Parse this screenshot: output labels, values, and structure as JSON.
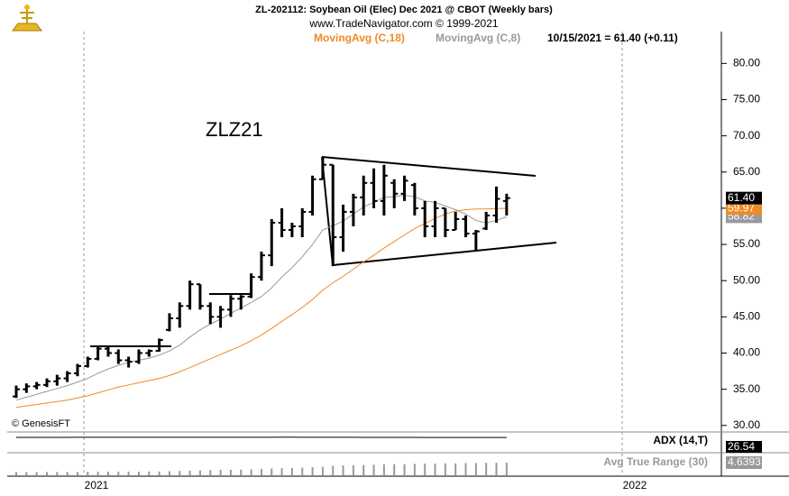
{
  "chart_data": {
    "type": "ohlc",
    "title": "ZL-202112:  Soybean Oil (Elec) Dec 2021 @ CBOT  (Weekly bars)",
    "subtitle": "www.TradeNavigator.com © 1999-2021",
    "info": "10/15/2021 = 61.40 (+0.11)",
    "annotation": "ZLZ21",
    "credit": "© GenesisFT",
    "color": "#000000",
    "ylim": [
      29.1,
      84.4
    ],
    "yticks": [
      {
        "value": 30,
        "label": "30.00"
      },
      {
        "value": 35,
        "label": "35.00"
      },
      {
        "value": 40,
        "label": "40.00"
      },
      {
        "value": 45,
        "label": "45.00"
      },
      {
        "value": 50,
        "label": "50.00"
      },
      {
        "value": 55,
        "label": "55.00"
      },
      {
        "value": 60,
        "label": "60.00"
      },
      {
        "value": 65,
        "label": "65.00"
      },
      {
        "value": 70,
        "label": "70.00"
      },
      {
        "value": 75,
        "label": "75.00"
      },
      {
        "value": 80,
        "label": "80.00"
      }
    ],
    "xticks": [
      2021,
      2022
    ],
    "open": [
      34.0,
      35.0,
      35.4,
      35.6,
      36.1,
      36.5,
      37.2,
      38.2,
      39.2,
      40.6,
      40.0,
      39.0,
      38.8,
      40.0,
      40.3,
      43.2,
      44.8,
      46.5,
      49.5,
      46.5,
      45.0,
      46.0,
      47.5,
      47.8,
      50.5,
      53.5,
      58.0,
      57.0,
      57.5,
      59.5,
      64.0,
      66.0,
      56.0,
      59.5,
      61.5,
      63.5,
      61.0,
      63.5,
      62.0,
      63.2,
      60.0,
      57.5,
      60.0,
      57.0,
      58.5,
      56.5,
      57.2,
      59.0,
      61.0
    ],
    "high": [
      35.5,
      35.8,
      36.0,
      36.5,
      37.0,
      37.5,
      38.5,
      39.5,
      41.0,
      41.0,
      40.5,
      39.5,
      40.5,
      40.5,
      42.0,
      45.5,
      47.0,
      50.0,
      49.5,
      47.0,
      46.5,
      48.0,
      48.0,
      51.0,
      54.0,
      58.5,
      60.0,
      58.0,
      60.0,
      64.5,
      67.0,
      66.0,
      60.5,
      62.0,
      64.5,
      65.5,
      66.0,
      64.0,
      64.5,
      63.5,
      61.0,
      61.0,
      60.0,
      59.5,
      59.0,
      57.0,
      59.5,
      63.0,
      62.0
    ],
    "low": [
      33.8,
      34.5,
      35.0,
      35.3,
      35.5,
      36.0,
      36.8,
      38.0,
      39.0,
      39.5,
      38.5,
      38.0,
      38.5,
      39.5,
      40.2,
      43.0,
      43.5,
      46.0,
      46.0,
      44.0,
      43.5,
      45.0,
      46.0,
      47.6,
      50.0,
      52.0,
      56.0,
      56.0,
      56.0,
      59.0,
      64.0,
      52.0,
      54.0,
      57.5,
      59.0,
      60.0,
      59.0,
      60.0,
      61.0,
      59.0,
      56.0,
      56.0,
      56.0,
      57.0,
      56.0,
      54.0,
      57.0,
      58.0,
      59.0
    ],
    "close": [
      35.0,
      35.4,
      35.6,
      36.1,
      36.5,
      37.2,
      38.2,
      39.2,
      40.6,
      40.0,
      39.0,
      38.8,
      40.0,
      40.3,
      41.8,
      44.8,
      46.5,
      49.5,
      46.5,
      45.0,
      46.0,
      47.5,
      47.8,
      50.5,
      53.5,
      58.0,
      57.0,
      57.5,
      59.5,
      64.0,
      66.0,
      56.0,
      59.5,
      61.5,
      63.5,
      61.0,
      64.5,
      62.0,
      63.8,
      60.0,
      57.5,
      60.0,
      57.0,
      58.5,
      56.5,
      56.8,
      59.0,
      61.29,
      61.4
    ],
    "close_label": "61.40",
    "series": [
      {
        "name": "MovingAvg (C,18)",
        "color": "#f08a24",
        "last_label": "59.97",
        "values": [
          32.5,
          32.7,
          32.9,
          33.1,
          33.3,
          33.5,
          33.8,
          34.1,
          34.5,
          34.9,
          35.3,
          35.6,
          35.9,
          36.2,
          36.5,
          36.9,
          37.4,
          38.0,
          38.6,
          39.2,
          39.8,
          40.4,
          41.0,
          41.7,
          42.5,
          43.4,
          44.4,
          45.3,
          46.3,
          47.4,
          48.7,
          49.7,
          50.6,
          51.6,
          52.6,
          53.5,
          54.5,
          55.4,
          56.3,
          57.2,
          57.9,
          58.6,
          59.2,
          59.6,
          59.8,
          59.9,
          59.9,
          59.95,
          59.97
        ]
      },
      {
        "name": "MovingAvg (C,8)",
        "color": "#999999",
        "last_label": "58.82",
        "values": [
          33.5,
          33.9,
          34.3,
          34.7,
          35.1,
          35.5,
          36.0,
          36.5,
          37.2,
          37.8,
          38.3,
          38.7,
          39.0,
          39.3,
          39.7,
          40.3,
          41.1,
          42.2,
          43.2,
          44.0,
          44.7,
          45.5,
          46.2,
          47.0,
          47.8,
          49.0,
          50.5,
          51.8,
          53.3,
          55.0,
          57.0,
          57.6,
          58.2,
          59.2,
          60.2,
          60.8,
          61.5,
          61.6,
          61.8,
          61.6,
          61.0,
          60.8,
          60.3,
          59.8,
          59.2,
          58.3,
          58.0,
          58.3,
          58.82
        ]
      }
    ],
    "adx": {
      "name": "ADX (14,T)",
      "last_label": "26.54",
      "values": [
        27.0,
        27.1,
        27.2,
        27.3,
        27.4,
        27.5,
        27.6,
        27.7,
        27.8,
        27.9,
        27.9,
        27.8,
        27.7,
        27.6,
        27.6,
        27.7,
        27.8,
        27.9,
        28.0,
        28.0,
        27.9,
        27.8,
        27.8,
        27.9,
        28.0,
        28.1,
        28.2,
        28.2,
        28.1,
        28.0,
        27.9,
        27.8,
        27.7,
        27.6,
        27.5,
        27.4,
        27.3,
        27.2,
        27.1,
        27.0,
        26.9,
        26.8,
        26.8,
        26.7,
        26.7,
        26.6,
        26.6,
        26.55,
        26.54
      ]
    },
    "atr": {
      "name": "Avg True Range (30)",
      "last_label": "4.6393",
      "values": [
        1.2,
        1.2,
        1.2,
        1.2,
        1.2,
        1.2,
        1.2,
        1.3,
        1.3,
        1.3,
        1.3,
        1.3,
        1.3,
        1.4,
        1.4,
        1.5,
        1.6,
        1.7,
        1.8,
        1.9,
        2.0,
        2.0,
        2.1,
        2.2,
        2.3,
        2.5,
        2.6,
        2.7,
        2.8,
        3.0,
        3.1,
        3.5,
        3.6,
        3.7,
        3.8,
        3.9,
        4.0,
        4.1,
        4.1,
        4.2,
        4.3,
        4.3,
        4.4,
        4.4,
        4.5,
        4.5,
        4.6,
        4.62,
        4.6393
      ]
    }
  }
}
